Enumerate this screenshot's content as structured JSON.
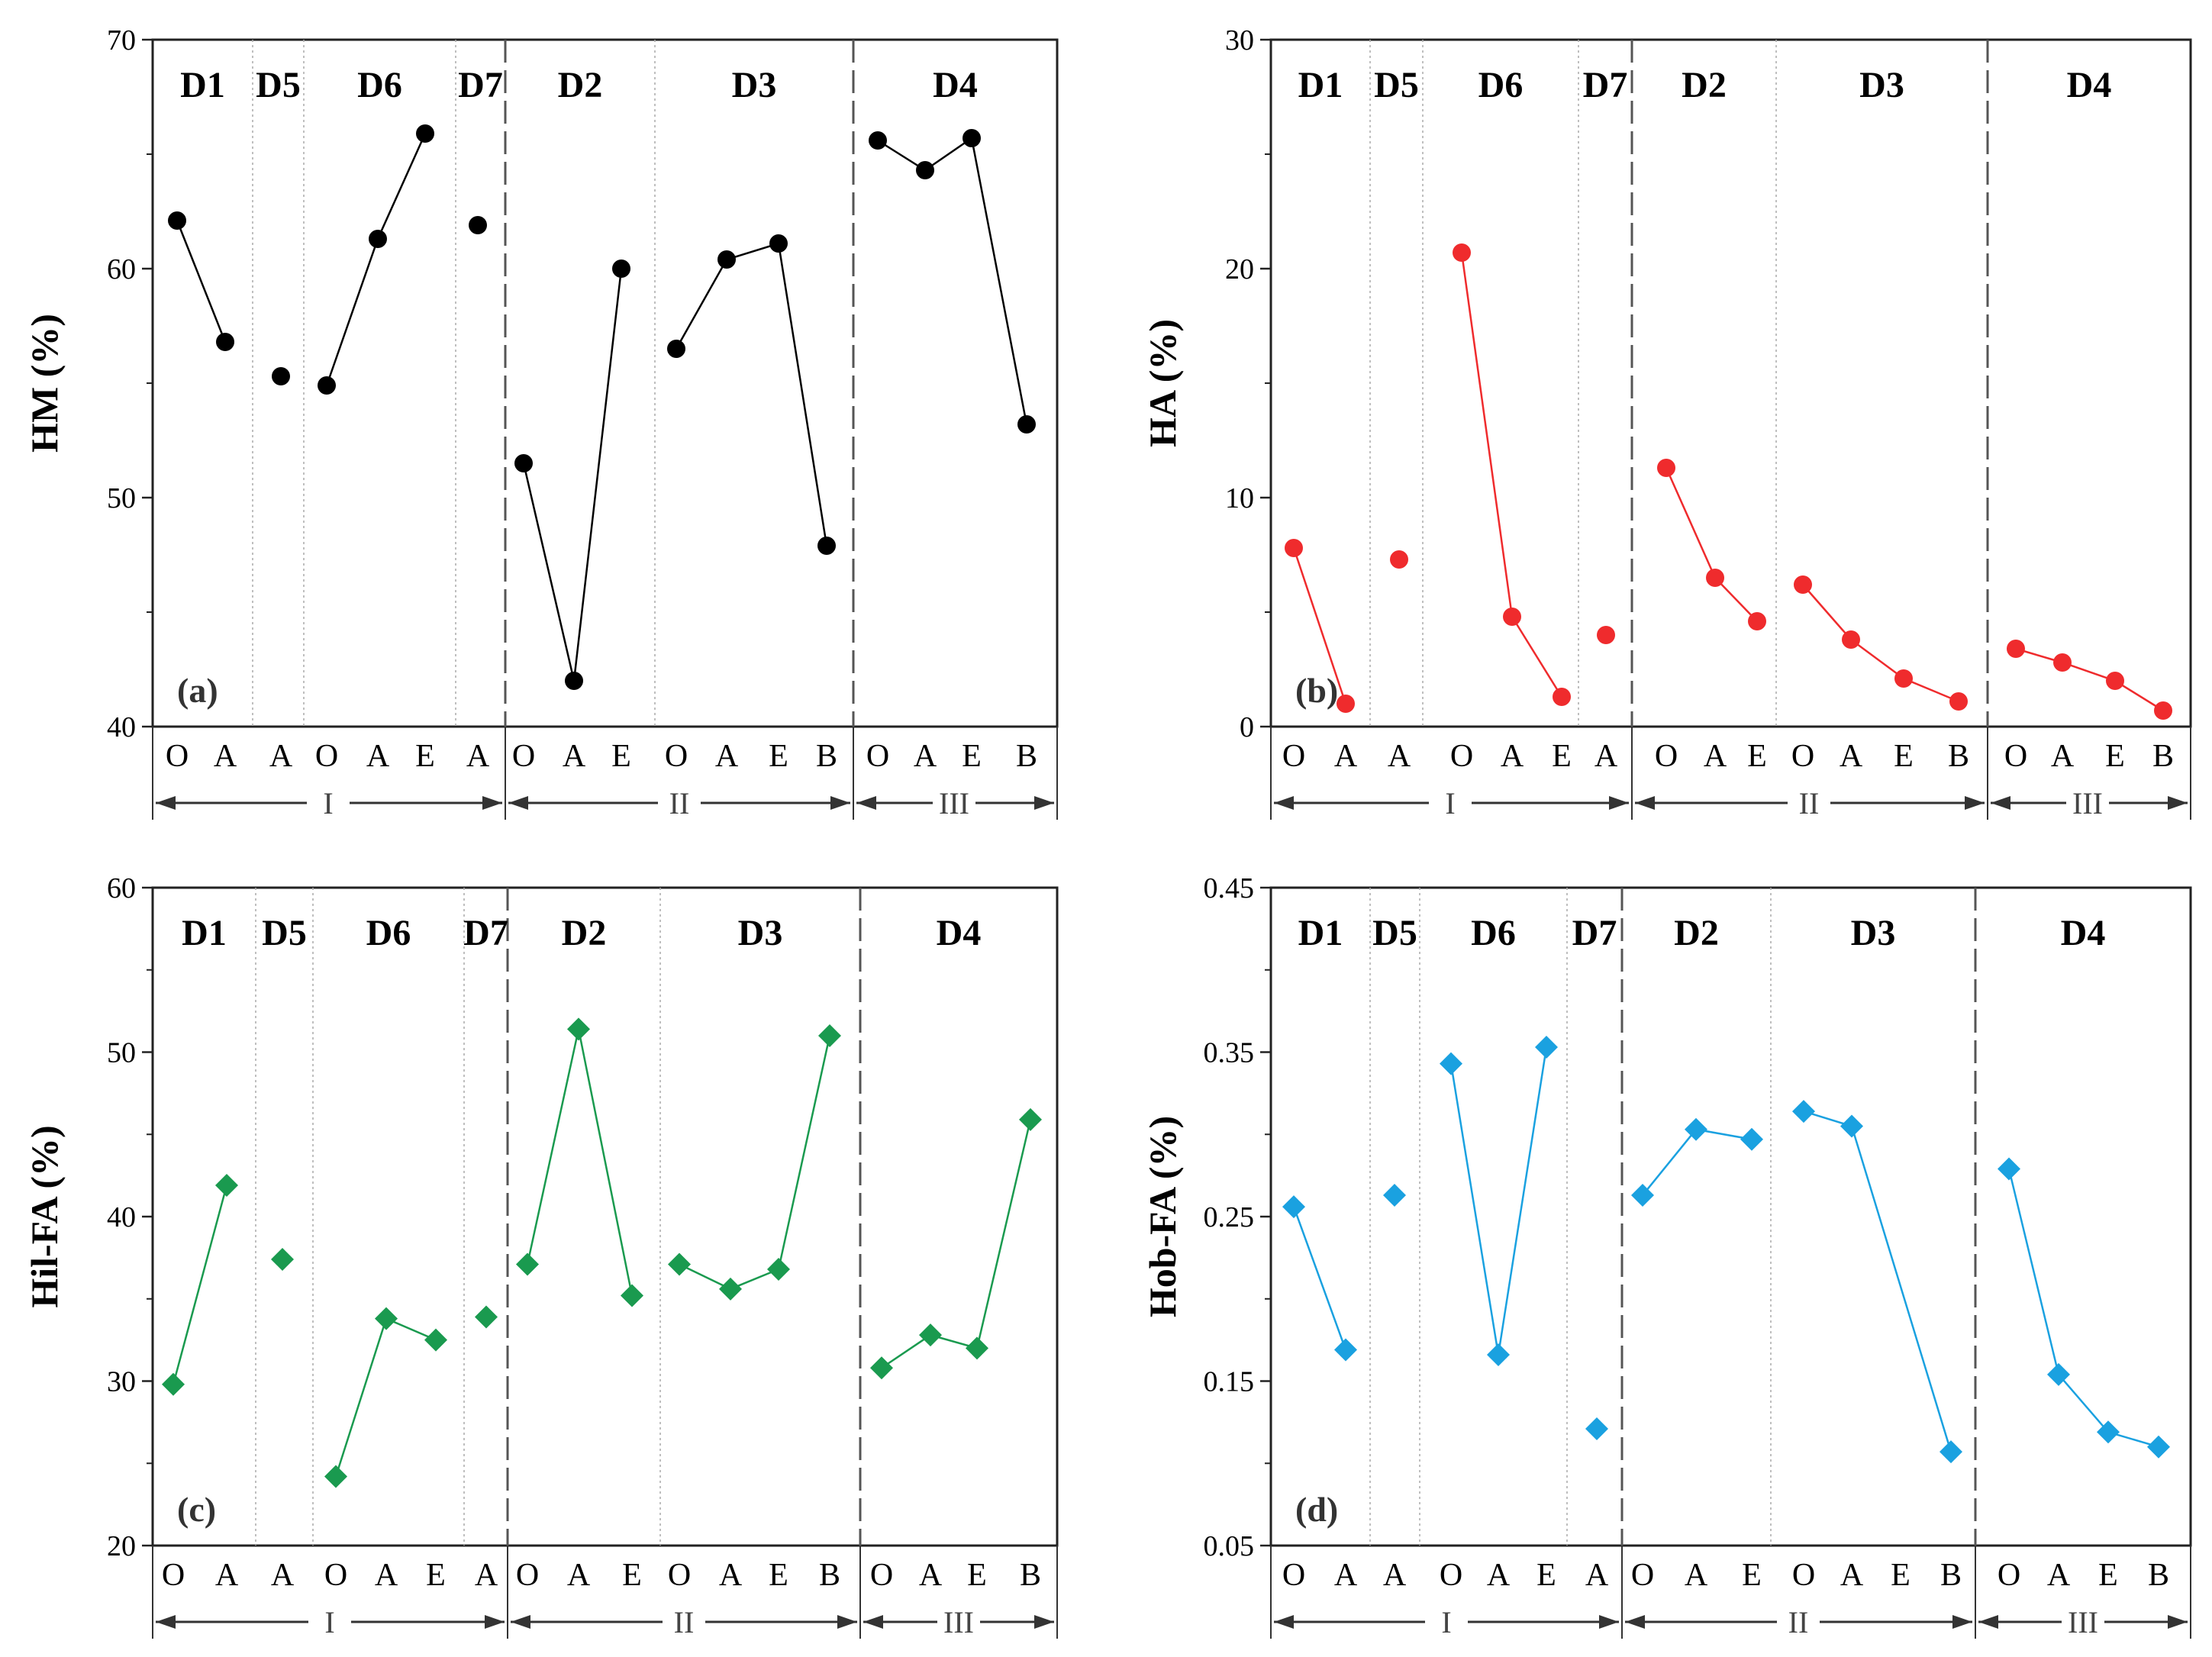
{
  "colors": {
    "a": "#000000",
    "b": "#ef2b2d",
    "c": "#1a9a4f",
    "d": "#1aa1e0"
  },
  "chart_data": [
    {
      "id": "a",
      "type": "line",
      "panel_label": "(a)",
      "ylabel": "HM (%)",
      "ylim": [
        40,
        70
      ],
      "yticks": [
        "40",
        "50",
        "60",
        "70"
      ],
      "marker": "circle",
      "groups": [
        {
          "label": "D1",
          "categories": [
            "O",
            "A"
          ],
          "values": [
            62.1,
            56.8
          ]
        },
        {
          "label": "D5",
          "categories": [
            "A"
          ],
          "values": [
            55.3
          ]
        },
        {
          "label": "D6",
          "categories": [
            "O",
            "A",
            "E"
          ],
          "values": [
            54.9,
            61.3,
            65.9
          ]
        },
        {
          "label": "D7",
          "categories": [
            "A"
          ],
          "values": [
            61.9
          ]
        },
        {
          "label": "D2",
          "categories": [
            "O",
            "A",
            "E"
          ],
          "values": [
            51.5,
            42.0,
            60.0
          ]
        },
        {
          "label": "D3",
          "categories": [
            "O",
            "A",
            "E",
            "B"
          ],
          "values": [
            56.5,
            60.4,
            61.1,
            47.9
          ]
        },
        {
          "label": "D4",
          "categories": [
            "O",
            "A",
            "E",
            "B"
          ],
          "values": [
            65.6,
            64.3,
            65.7,
            53.2
          ]
        }
      ],
      "regions": [
        "I",
        "II",
        "III"
      ]
    },
    {
      "id": "b",
      "type": "line",
      "panel_label": "(b)",
      "ylabel": "HA (%)",
      "ylim": [
        0,
        30
      ],
      "yticks": [
        "0",
        "10",
        "20",
        "30"
      ],
      "marker": "circle",
      "groups": [
        {
          "label": "D1",
          "categories": [
            "O",
            "A"
          ],
          "values": [
            7.8,
            1.0
          ]
        },
        {
          "label": "D5",
          "categories": [
            "A"
          ],
          "values": [
            7.3
          ]
        },
        {
          "label": "D6",
          "categories": [
            "O",
            "A",
            "E"
          ],
          "values": [
            20.7,
            4.8,
            1.3
          ]
        },
        {
          "label": "D7",
          "categories": [
            "A"
          ],
          "values": [
            4.0
          ]
        },
        {
          "label": "D2",
          "categories": [
            "O",
            "A",
            "E"
          ],
          "values": [
            11.3,
            6.5,
            4.6
          ]
        },
        {
          "label": "D3",
          "categories": [
            "O",
            "A",
            "E",
            "B"
          ],
          "values": [
            6.2,
            3.8,
            2.1,
            1.1
          ]
        },
        {
          "label": "D4",
          "categories": [
            "O",
            "A",
            "E",
            "B"
          ],
          "values": [
            3.4,
            2.8,
            2.0,
            0.7
          ]
        }
      ],
      "regions": [
        "I",
        "II",
        "III"
      ]
    },
    {
      "id": "c",
      "type": "line",
      "panel_label": "(c)",
      "ylabel": "Hil-FA (%)",
      "ylim": [
        20,
        60
      ],
      "yticks": [
        "20",
        "30",
        "40",
        "50",
        "60"
      ],
      "marker": "diamond",
      "groups": [
        {
          "label": "D1",
          "categories": [
            "O",
            "A"
          ],
          "values": [
            29.8,
            41.9
          ]
        },
        {
          "label": "D5",
          "categories": [
            "A"
          ],
          "values": [
            37.4
          ]
        },
        {
          "label": "D6",
          "categories": [
            "O",
            "A",
            "E"
          ],
          "values": [
            24.2,
            33.8,
            32.5
          ]
        },
        {
          "label": "D7",
          "categories": [
            "A"
          ],
          "values": [
            33.9
          ]
        },
        {
          "label": "D2",
          "categories": [
            "O",
            "A",
            "E"
          ],
          "values": [
            37.1,
            51.4,
            35.2
          ]
        },
        {
          "label": "D3",
          "categories": [
            "O",
            "A",
            "E",
            "B"
          ],
          "values": [
            37.1,
            35.6,
            36.8,
            51.0
          ]
        },
        {
          "label": "D4",
          "categories": [
            "O",
            "A",
            "E",
            "B"
          ],
          "values": [
            30.8,
            32.8,
            32.0,
            45.9
          ]
        }
      ],
      "regions": [
        "I",
        "II",
        "III"
      ]
    },
    {
      "id": "d",
      "type": "line",
      "panel_label": "(d)",
      "ylabel": "Hob-FA (%)",
      "ylim": [
        0.05,
        0.45
      ],
      "yticks": [
        "0.05",
        "0.15",
        "0.25",
        "0.35",
        "0.45"
      ],
      "marker": "diamond",
      "groups": [
        {
          "label": "D1",
          "categories": [
            "O",
            "A"
          ],
          "values": [
            0.256,
            0.169
          ]
        },
        {
          "label": "D5",
          "categories": [
            "A"
          ],
          "values": [
            0.263
          ]
        },
        {
          "label": "D6",
          "categories": [
            "O",
            "A",
            "E"
          ],
          "values": [
            0.343,
            0.166,
            0.353
          ]
        },
        {
          "label": "D7",
          "categories": [
            "A"
          ],
          "values": [
            0.121
          ]
        },
        {
          "label": "D2",
          "categories": [
            "O",
            "A",
            "E"
          ],
          "values": [
            0.263,
            0.303,
            0.297
          ]
        },
        {
          "label": "D3",
          "categories": [
            "O",
            "A",
            "E",
            "B"
          ],
          "values": [
            0.314,
            0.305,
            null,
            0.107
          ]
        },
        {
          "label": "D4",
          "categories": [
            "O",
            "A",
            "E",
            "B"
          ],
          "values": [
            0.279,
            0.154,
            0.119,
            0.11
          ]
        }
      ],
      "regions": [
        "I",
        "II",
        "III"
      ]
    }
  ]
}
